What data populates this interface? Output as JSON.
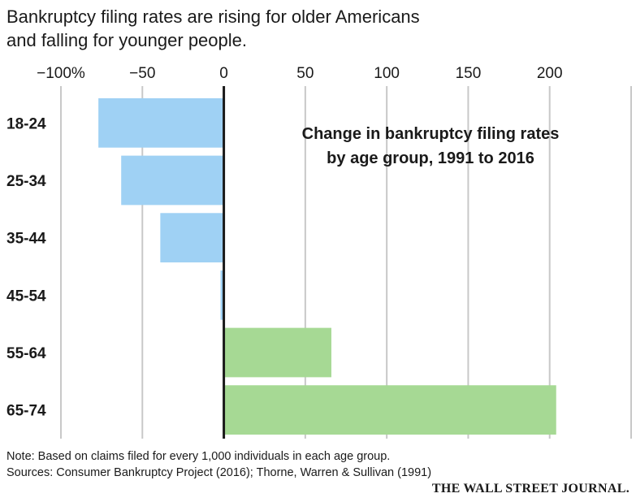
{
  "headline": {
    "line1": "Bankruptcy filing rates are rising for older Americans",
    "line2": "and falling for younger people."
  },
  "chart_data": {
    "type": "bar",
    "orientation": "horizontal",
    "title": "Change in bankruptcy filing rates by age group, 1991 to 2016",
    "title_lines": [
      "Change in bankruptcy filing rates",
      "by age group, 1991 to 2016"
    ],
    "categories": [
      "18-24",
      "25-34",
      "35-44",
      "45-54",
      "55-64",
      "65-74"
    ],
    "values": [
      -77,
      -63,
      -39,
      -2,
      66,
      204
    ],
    "unit": "%",
    "xlim": [
      -100,
      250
    ],
    "x_ticks": [
      -100,
      -50,
      0,
      50,
      100,
      150,
      200,
      250
    ],
    "x_tick_labels": [
      "−100%",
      "−50",
      "0",
      "50",
      "100",
      "150",
      "200",
      ""
    ],
    "grid": true,
    "colors": {
      "negative": "#9fd1f4",
      "positive": "#a6d994",
      "grid": "#c8c8c8",
      "zero_line": "#1a1a1a"
    }
  },
  "notes": {
    "note": "Note: Based on claims filed for every 1,000 individuals in each age group.",
    "sources": "Sources: Consumer Bankruptcy Project (2016); Thorne, Warren & Sullivan (1991)"
  },
  "source_credit": "THE WALL STREET JOURNAL."
}
